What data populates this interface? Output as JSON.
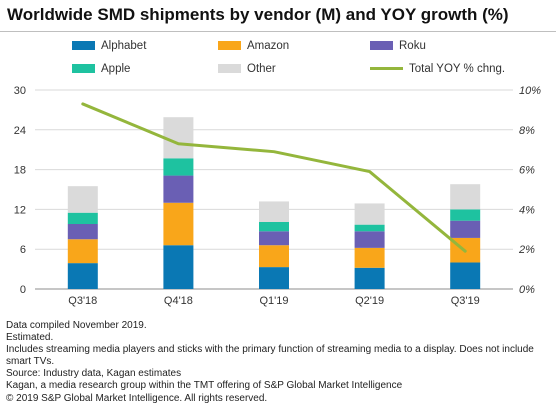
{
  "chart_data": {
    "type": "bar",
    "stacked": true,
    "title": "Worldwide SMD shipments by vendor (M) and YOY growth (%)",
    "categories": [
      "Q3'18",
      "Q4'18",
      "Q1'19",
      "Q2'19",
      "Q3'19"
    ],
    "series": [
      {
        "name": "Alphabet",
        "color": "#0a78b4",
        "values": [
          3.9,
          6.6,
          3.3,
          3.2,
          4.0
        ]
      },
      {
        "name": "Amazon",
        "color": "#f9a61a",
        "values": [
          3.6,
          6.4,
          3.3,
          3.0,
          3.7
        ]
      },
      {
        "name": "Roku",
        "color": "#6a5fb4",
        "values": [
          2.3,
          4.1,
          2.1,
          2.5,
          2.6
        ]
      },
      {
        "name": "Apple",
        "color": "#1ec2a0",
        "values": [
          1.7,
          2.6,
          1.4,
          1.0,
          1.7
        ]
      },
      {
        "name": "Other",
        "color": "#dadada",
        "values": [
          4.0,
          6.2,
          3.1,
          3.2,
          3.8
        ]
      }
    ],
    "line_series": {
      "name": "Total YOY % chng.",
      "color": "#94b63c",
      "values": [
        9.3,
        7.3,
        6.9,
        5.9,
        1.9
      ]
    },
    "y_left": {
      "lim": [
        0,
        30
      ],
      "ticks": [
        "0",
        "6",
        "12",
        "18",
        "24",
        "30"
      ]
    },
    "y_right": {
      "lim": [
        0,
        10
      ],
      "ticks": [
        "0%",
        "2%",
        "4%",
        "6%",
        "8%",
        "10%"
      ]
    },
    "legend_position": "top",
    "grid": true
  },
  "notes": [
    "Data compiled November 2019.",
    "Estimated.",
    "Includes streaming media players and sticks with the primary function of streaming media to a display. Does not include smart TVs.",
    "Source: Industry data, Kagan estimates",
    "Kagan, a media research group within the TMT offering of S&P Global Market Intelligence",
    "© 2019 S&P Global Market Intelligence. All rights reserved."
  ]
}
